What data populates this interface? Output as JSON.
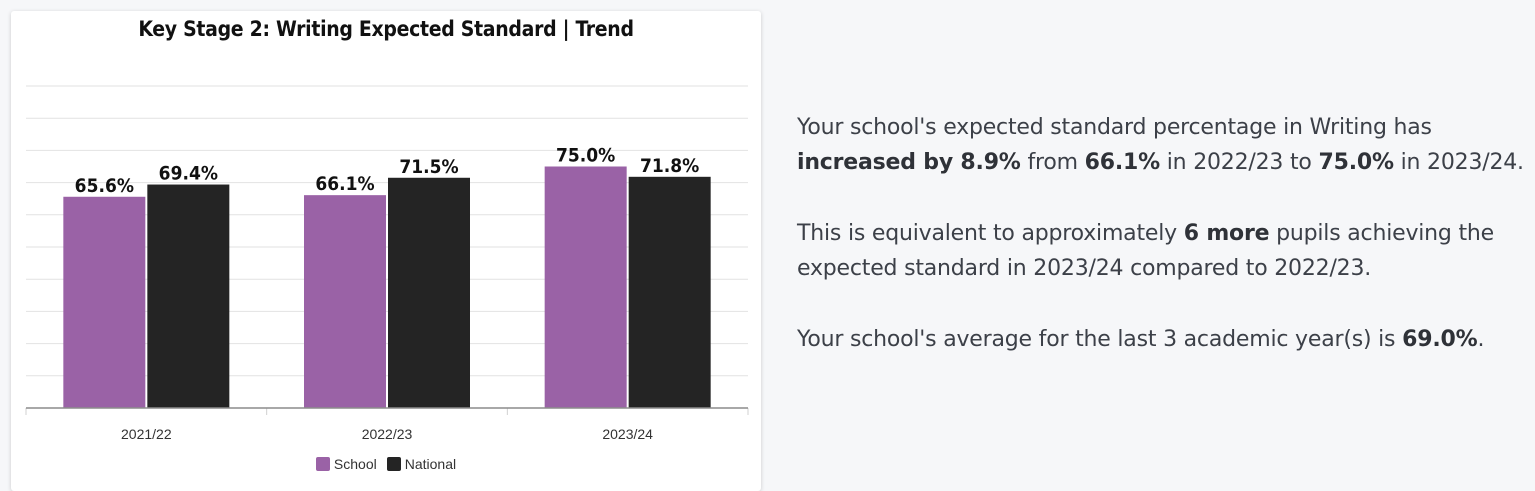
{
  "chart_data": {
    "type": "bar",
    "title": "Key Stage 2: Writing Expected Standard | Trend",
    "categories": [
      "2021/22",
      "2022/23",
      "2023/24"
    ],
    "series": [
      {
        "name": "School",
        "color": "#9a62a6",
        "values": [
          65.6,
          66.1,
          75.0
        ],
        "labels": [
          "65.6%",
          "66.1%",
          "75.0%"
        ]
      },
      {
        "name": "National",
        "color": "#242424",
        "values": [
          69.4,
          71.5,
          71.8
        ],
        "labels": [
          "69.4%",
          "71.5%",
          "71.8%"
        ]
      }
    ],
    "ylim": [
      0,
      100
    ],
    "grid": true,
    "legend_position": "bottom-center"
  },
  "summary": {
    "p1_a": "Your school's expected standard percentage in Writing has ",
    "p1_b": "increased by 8.9%",
    "p1_c": " from ",
    "p1_d": "66.1%",
    "p1_e": " in 2022/23 to ",
    "p1_f": "75.0%",
    "p1_g": " in 2023/24.",
    "p2_a": "This is equivalent to approximately ",
    "p2_b": "6 more",
    "p2_c": " pupils achieving the expected standard in 2023/24 compared to 2022/23.",
    "p3_a": "Your school's average for the last 3 academic year(s) is ",
    "p3_b": "69.0%",
    "p3_c": "."
  }
}
